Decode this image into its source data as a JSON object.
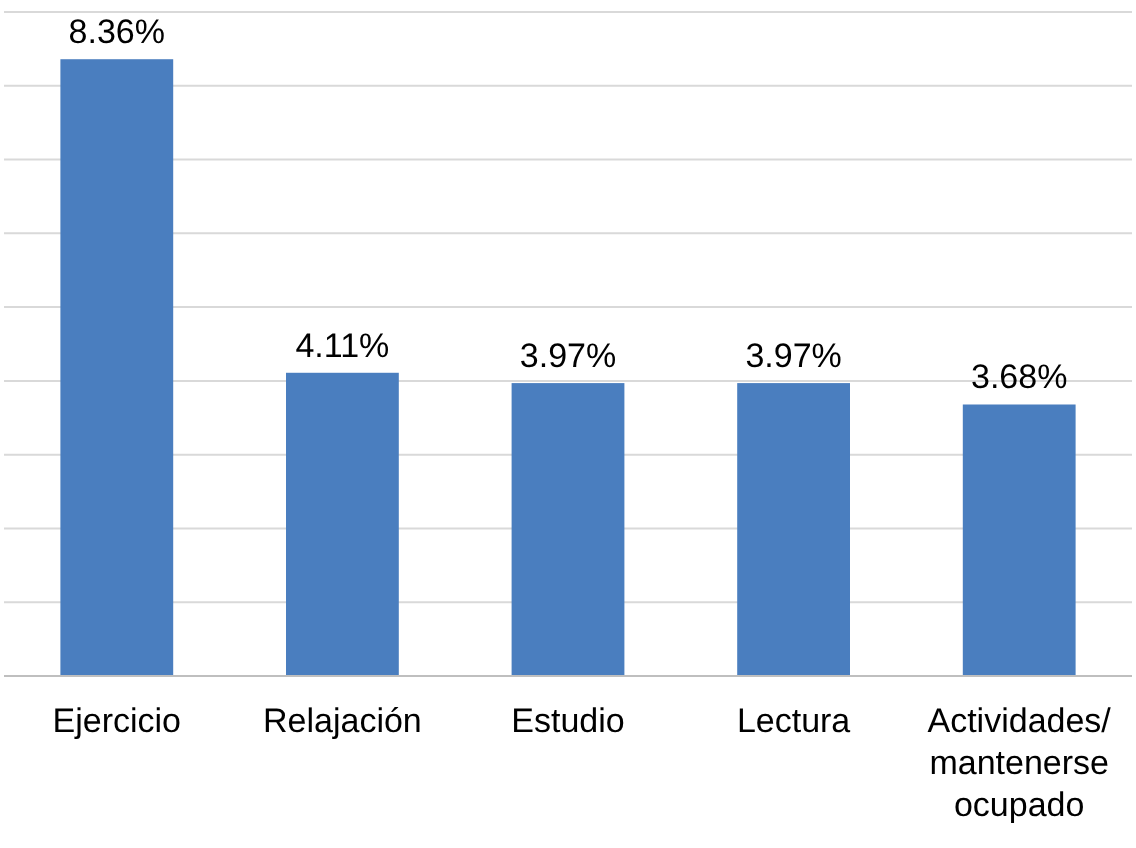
{
  "chart_data": {
    "type": "bar",
    "categories": [
      "Ejercicio",
      "Relajación",
      "Estudio",
      "Lectura",
      "Actividades/ mantenerse ocupado"
    ],
    "values": [
      8.36,
      4.11,
      3.97,
      3.97,
      3.68
    ],
    "value_labels": [
      "8.36%",
      "4.11%",
      "3.97%",
      "3.97%",
      "3.68%"
    ],
    "color": "#4a7ebf",
    "ylim": [
      0,
      9
    ],
    "yticks": [
      {
        "value": 0,
        "label": null
      },
      {
        "value": 1,
        "label": null
      },
      {
        "value": 2,
        "label": null
      },
      {
        "value": 3,
        "label": null
      },
      {
        "value": 4,
        "label": null
      },
      {
        "value": 5,
        "label": null
      },
      {
        "value": 6,
        "label": null
      },
      {
        "value": 7,
        "label": null
      },
      {
        "value": 8,
        "label": null
      },
      {
        "value": 9,
        "label": null
      }
    ],
    "grid": "y",
    "tick_labels": "x"
  }
}
